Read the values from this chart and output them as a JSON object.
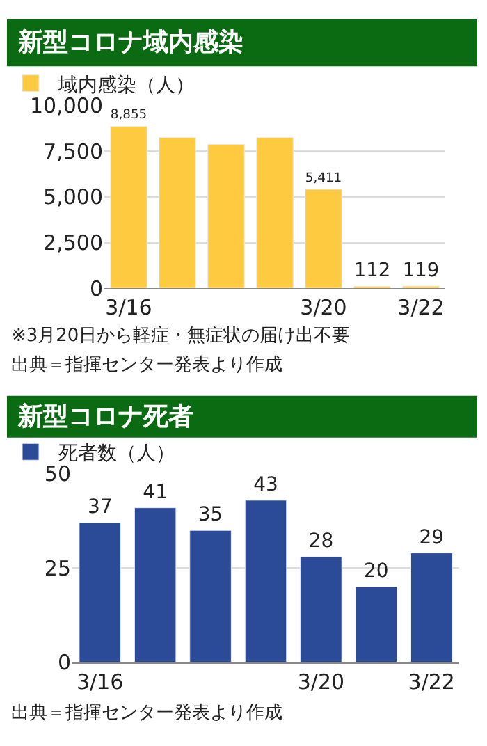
{
  "chart_data": [
    {
      "type": "bar",
      "title": "新型コロナ域内感染",
      "categories": [
        "3/16",
        null,
        null,
        null,
        "3/20",
        null,
        "3/22"
      ],
      "series": [
        {
          "name": "域内感染（人）",
          "color": "#fdca40",
          "values": [
            8855,
            8240,
            7870,
            8240,
            5411,
            112,
            119
          ],
          "value_labels": [
            "8,855",
            null,
            null,
            null,
            "5,411",
            "112",
            "119"
          ]
        }
      ],
      "ylim": [
        0,
        10000
      ],
      "yticks": [
        {
          "value": 0,
          "label": "0"
        },
        {
          "value": 2500,
          "label": "2,500"
        },
        {
          "value": 5000,
          "label": "5,000"
        },
        {
          "value": 7500,
          "label": "7,500"
        },
        {
          "value": 10000,
          "label": "10,000"
        }
      ],
      "grid": "y",
      "legend": "top left",
      "annotations": [
        "※3月20日から軽症・無症状の届け出不要",
        "出典＝指揮センター発表より作成"
      ]
    },
    {
      "type": "bar",
      "title": "新型コロナ死者",
      "categories": [
        "3/16",
        null,
        null,
        null,
        "3/20",
        null,
        "3/22"
      ],
      "series": [
        {
          "name": "死者数（人）",
          "color": "#2b4a97",
          "values": [
            37,
            41,
            35,
            43,
            28,
            20,
            29
          ]
        }
      ],
      "ylim": [
        0,
        50
      ],
      "yticks": [
        0,
        25,
        50
      ],
      "data_labels": true,
      "grid": "y",
      "legend": "top left",
      "annotations": [
        "出典＝指揮センター発表より作成"
      ]
    }
  ]
}
